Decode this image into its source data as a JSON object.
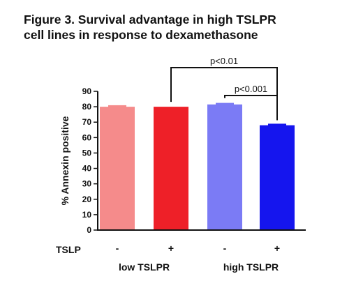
{
  "title_lines": [
    "Figure 3. Survival advantage in high TSLPR",
    "cell lines in response to dexamethasone"
  ],
  "colors": {
    "low_minus": "#f58b8b",
    "low_plus": "#ee2028",
    "high_minus": "#7b7bf5",
    "high_plus": "#1515ee",
    "axis": "#111111"
  },
  "chart_data": {
    "type": "bar",
    "title": "Figure 3. Survival advantage in high TSLPR cell lines in response to dexamethasone",
    "ylabel": "% Annexin positive",
    "xlabel": "",
    "ylim": [
      0,
      90
    ],
    "yticks": [
      0,
      10,
      20,
      30,
      40,
      50,
      60,
      70,
      80,
      90
    ],
    "grid": false,
    "row_label": "TSLP",
    "bars": [
      {
        "tslp": "-",
        "value": 80,
        "error": 1,
        "color_key": "low_minus"
      },
      {
        "tslp": "+",
        "value": 80,
        "error": 0,
        "color_key": "low_plus"
      },
      {
        "tslp": "-",
        "value": 81.5,
        "error": 1,
        "color_key": "high_minus"
      },
      {
        "tslp": "+",
        "value": 68,
        "error": 1,
        "color_key": "high_plus"
      }
    ],
    "groups": [
      {
        "label": "low TSLPR",
        "bars": [
          0,
          1
        ]
      },
      {
        "label": "high TSLPR",
        "bars": [
          2,
          3
        ]
      }
    ],
    "annotations": [
      {
        "text": "p<0.01",
        "from_bar": 1,
        "to_bar": 3
      },
      {
        "text": "p<0.001",
        "from_bar": 2,
        "to_bar": 3
      }
    ]
  }
}
